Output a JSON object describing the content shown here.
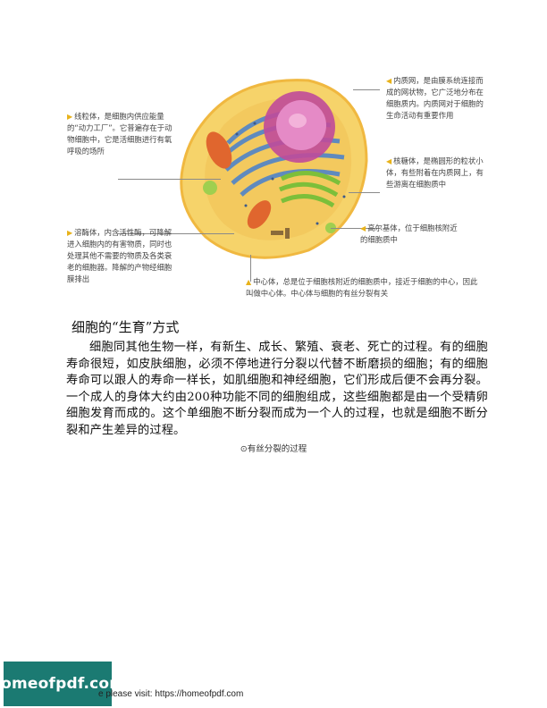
{
  "figure": {
    "annotations": {
      "mitochondria": "线粒体，是细胞内供应能量的“动力工厂”。它普遍存在于动物细胞中，它是活细胞进行有氧呼吸的场所",
      "lysosome": "溶酶体，内含活性酶，可降解进入细胞内的有害物质，同时也处理其他不需要的物质及各类衰老的细胞器。降解的产物经细胞膜排出",
      "er": "内质网，是由膜系统连接而成的网状物，它广泛地分布在细胞质内。内质网对于细胞的生命活动有重要作用",
      "ribosome": "核糖体，是椭圆形的粒状小体，有些附着在内质网上，有些游离在细胞质中",
      "golgi": "高尔基体，位于细胞核附近的细胞质中",
      "centrosome": "中心体，总是位于细胞核附近的细胞质中，接近于细胞的中心，因此叫做中心体。中心体与细胞的有丝分裂有关"
    }
  },
  "section": {
    "heading": "细胞的“生育”方式",
    "paragraph": "细胞同其他生物一样，有新生、成长、繁殖、衰老、死亡的过程。有的细胞寿命很短，如皮肤细胞，必须不停地进行分裂以代替不断磨损的细胞；有的细胞寿命可以跟人的寿命一样长，如肌细胞和神经细胞，它们形成后便不会再分裂。一个成人的身体大约由200种功能不同的细胞组成，这些细胞都是由一个受精卵细胞发育而成的。这个单细胞不断分裂而成为一个人的过程，也就是细胞不断分裂和产生差异的过程。",
    "caption": "⊙有丝分裂的过程"
  },
  "footer": {
    "badge": "homeofpdf.com",
    "text": "e please visit: https://homeofpdf.com"
  },
  "icons": [
    "triangle-pointer-icon"
  ],
  "colors": {
    "pointer": "#e8b21a",
    "badge": "#1b7a72",
    "cytoplasm": "#f6d36a",
    "membrane": "#f0b840",
    "nucleus": "#c04a9a",
    "er": "#4f84c9",
    "golgi": "#7cbf3a"
  }
}
